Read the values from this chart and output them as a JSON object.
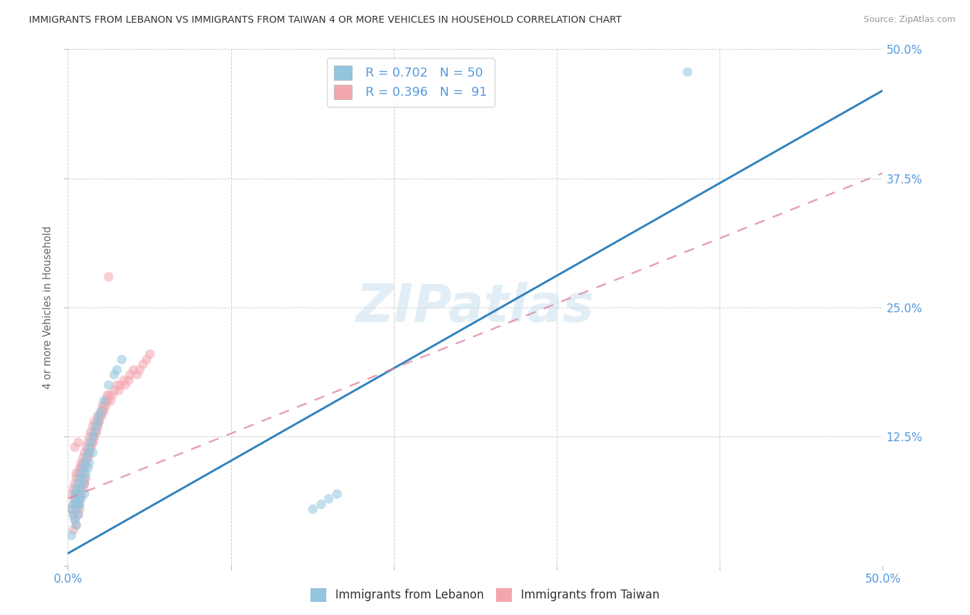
{
  "title": "IMMIGRANTS FROM LEBANON VS IMMIGRANTS FROM TAIWAN 4 OR MORE VEHICLES IN HOUSEHOLD CORRELATION CHART",
  "source": "Source: ZipAtlas.com",
  "ylabel": "4 or more Vehicles in Household",
  "xlim": [
    0.0,
    0.5
  ],
  "ylim": [
    0.0,
    0.5
  ],
  "xticks": [
    0.0,
    0.1,
    0.2,
    0.3,
    0.4,
    0.5
  ],
  "yticks": [
    0.0,
    0.125,
    0.25,
    0.375,
    0.5
  ],
  "xticklabels": [
    "0.0%",
    "",
    "",
    "",
    "",
    "50.0%"
  ],
  "right_yticklabels": [
    "",
    "12.5%",
    "25.0%",
    "37.5%",
    "50.0%"
  ],
  "watermark": "ZIPatlas",
  "legend_R1": "0.702",
  "legend_N1": "50",
  "legend_R2": "0.396",
  "legend_N2": "91",
  "color_lebanon": "#92c5de",
  "color_taiwan": "#f4a6b0",
  "trendline_color_lebanon": "#3182bd",
  "trendline_color_taiwan": "#de7fa0",
  "background_color": "#ffffff",
  "grid_color": "#cccccc",
  "lebanon_trendline_x0": 0.0,
  "lebanon_trendline_y0": 0.012,
  "lebanon_trendline_x1": 0.5,
  "lebanon_trendline_y1": 0.46,
  "taiwan_trendline_x0": 0.0,
  "taiwan_trendline_y0": 0.065,
  "taiwan_trendline_x1": 0.5,
  "taiwan_trendline_y1": 0.38,
  "lebanon_x": [
    0.002,
    0.003,
    0.003,
    0.004,
    0.004,
    0.004,
    0.005,
    0.005,
    0.005,
    0.005,
    0.006,
    0.006,
    0.006,
    0.006,
    0.007,
    0.007,
    0.007,
    0.008,
    0.008,
    0.008,
    0.009,
    0.009,
    0.01,
    0.01,
    0.01,
    0.011,
    0.011,
    0.012,
    0.012,
    0.013,
    0.013,
    0.014,
    0.015,
    0.015,
    0.016,
    0.017,
    0.018,
    0.019,
    0.02,
    0.022,
    0.025,
    0.028,
    0.03,
    0.033,
    0.15,
    0.155,
    0.16,
    0.165,
    0.002,
    0.38
  ],
  "lebanon_y": [
    0.055,
    0.06,
    0.05,
    0.065,
    0.07,
    0.045,
    0.075,
    0.06,
    0.07,
    0.04,
    0.08,
    0.065,
    0.058,
    0.05,
    0.085,
    0.07,
    0.06,
    0.09,
    0.075,
    0.065,
    0.095,
    0.08,
    0.1,
    0.085,
    0.07,
    0.105,
    0.09,
    0.11,
    0.095,
    0.115,
    0.1,
    0.12,
    0.125,
    0.11,
    0.13,
    0.135,
    0.14,
    0.145,
    0.15,
    0.16,
    0.175,
    0.185,
    0.19,
    0.2,
    0.055,
    0.06,
    0.065,
    0.07,
    0.03,
    0.478
  ],
  "taiwan_x": [
    0.002,
    0.002,
    0.003,
    0.003,
    0.003,
    0.004,
    0.004,
    0.004,
    0.005,
    0.005,
    0.005,
    0.005,
    0.006,
    0.006,
    0.006,
    0.006,
    0.007,
    0.007,
    0.007,
    0.007,
    0.008,
    0.008,
    0.008,
    0.009,
    0.009,
    0.009,
    0.01,
    0.01,
    0.01,
    0.011,
    0.011,
    0.012,
    0.012,
    0.013,
    0.013,
    0.014,
    0.014,
    0.015,
    0.015,
    0.016,
    0.016,
    0.017,
    0.018,
    0.018,
    0.019,
    0.02,
    0.02,
    0.021,
    0.022,
    0.023,
    0.024,
    0.025,
    0.026,
    0.027,
    0.028,
    0.03,
    0.031,
    0.032,
    0.034,
    0.035,
    0.037,
    0.038,
    0.04,
    0.042,
    0.044,
    0.046,
    0.048,
    0.05,
    0.003,
    0.004,
    0.005,
    0.006,
    0.007,
    0.008,
    0.009,
    0.01,
    0.011,
    0.012,
    0.013,
    0.014,
    0.015,
    0.016,
    0.017,
    0.018,
    0.019,
    0.02,
    0.021,
    0.022,
    0.023,
    0.024,
    0.025
  ],
  "taiwan_y": [
    0.055,
    0.07,
    0.06,
    0.075,
    0.05,
    0.065,
    0.08,
    0.045,
    0.07,
    0.085,
    0.055,
    0.04,
    0.075,
    0.09,
    0.06,
    0.05,
    0.08,
    0.095,
    0.065,
    0.055,
    0.085,
    0.1,
    0.07,
    0.09,
    0.105,
    0.075,
    0.095,
    0.11,
    0.08,
    0.1,
    0.115,
    0.105,
    0.12,
    0.11,
    0.125,
    0.115,
    0.13,
    0.12,
    0.135,
    0.125,
    0.14,
    0.13,
    0.145,
    0.135,
    0.14,
    0.15,
    0.145,
    0.155,
    0.15,
    0.155,
    0.16,
    0.165,
    0.16,
    0.165,
    0.17,
    0.175,
    0.17,
    0.175,
    0.18,
    0.175,
    0.18,
    0.185,
    0.19,
    0.185,
    0.19,
    0.195,
    0.2,
    0.205,
    0.035,
    0.115,
    0.09,
    0.12,
    0.065,
    0.095,
    0.1,
    0.08,
    0.085,
    0.105,
    0.11,
    0.115,
    0.12,
    0.125,
    0.13,
    0.135,
    0.14,
    0.145,
    0.15,
    0.155,
    0.16,
    0.165,
    0.28
  ]
}
